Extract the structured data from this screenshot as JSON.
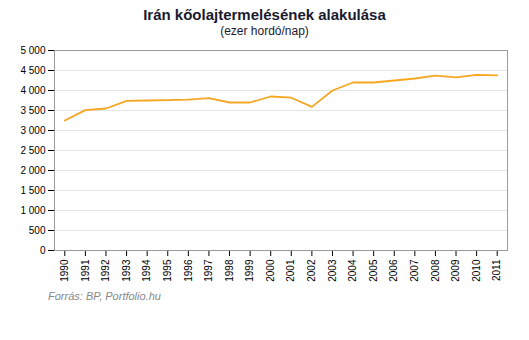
{
  "chart_data": {
    "type": "line",
    "title": "Irán kőolajtermelésének alakulása",
    "subtitle": "(ezer hordó/nap)",
    "source": "Forrás: BP, Portfolio.hu",
    "x": [
      1990,
      1991,
      1992,
      1993,
      1994,
      1995,
      1996,
      1997,
      1998,
      1999,
      2000,
      2001,
      2002,
      2003,
      2004,
      2005,
      2006,
      2007,
      2008,
      2009,
      2010,
      2011
    ],
    "values": [
      3250,
      3510,
      3550,
      3740,
      3750,
      3760,
      3770,
      3810,
      3700,
      3700,
      3850,
      3820,
      3590,
      4000,
      4200,
      4200,
      4250,
      4300,
      4370,
      4330,
      4390,
      4380
    ],
    "color": "#F5A623",
    "xlim": [
      1989.5,
      2011.5
    ],
    "xticks": [
      1990,
      1991,
      1992,
      1993,
      1994,
      1995,
      1996,
      1997,
      1998,
      1999,
      2000,
      2001,
      2002,
      2003,
      2004,
      2005,
      2006,
      2007,
      2008,
      2009,
      2010,
      2011
    ],
    "ylim": [
      0,
      5000
    ],
    "yticks": [
      0,
      500,
      {
        "value": 1000,
        "label": "1 000"
      },
      {
        "value": 1500,
        "label": "1 500"
      },
      {
        "value": 2000,
        "label": "2 000"
      },
      {
        "value": 2500,
        "label": "2 500"
      },
      {
        "value": 3000,
        "label": "3 000"
      },
      {
        "value": 3500,
        "label": "3 500"
      },
      {
        "value": 4000,
        "label": "4 000"
      },
      {
        "value": 4500,
        "label": "4 500"
      },
      {
        "value": 5000,
        "label": "5 000"
      }
    ],
    "grid": true
  }
}
